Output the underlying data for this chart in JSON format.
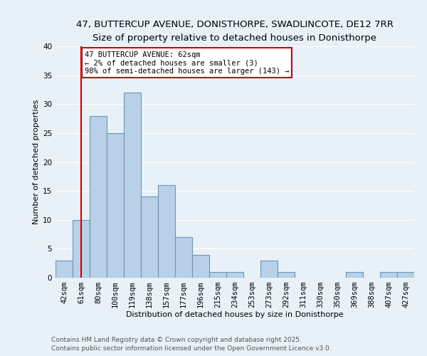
{
  "title1": "47, BUTTERCUP AVENUE, DONISTHORPE, SWADLINCOTE, DE12 7RR",
  "title2": "Size of property relative to detached houses in Donisthorpe",
  "xlabel": "Distribution of detached houses by size in Donisthorpe",
  "ylabel": "Number of detached properties",
  "bin_labels": [
    "42sqm",
    "61sqm",
    "80sqm",
    "100sqm",
    "119sqm",
    "138sqm",
    "157sqm",
    "177sqm",
    "196sqm",
    "215sqm",
    "234sqm",
    "253sqm",
    "273sqm",
    "292sqm",
    "311sqm",
    "330sqm",
    "350sqm",
    "369sqm",
    "388sqm",
    "407sqm",
    "427sqm"
  ],
  "bar_values": [
    3,
    10,
    28,
    25,
    32,
    14,
    16,
    7,
    4,
    1,
    1,
    0,
    3,
    1,
    0,
    0,
    0,
    1,
    0,
    1,
    1
  ],
  "bar_color": "#b8d0e8",
  "bar_edge_color": "#6699bb",
  "ylim": [
    0,
    40
  ],
  "yticks": [
    0,
    5,
    10,
    15,
    20,
    25,
    30,
    35,
    40
  ],
  "property_line_x": 1.0,
  "property_line_color": "#cc0000",
  "annotation_title": "47 BUTTERCUP AVENUE: 62sqm",
  "annotation_line1": "← 2% of detached houses are smaller (3)",
  "annotation_line2": "98% of semi-detached houses are larger (143) →",
  "annotation_box_color": "#ffffff",
  "annotation_box_edge": "#cc0000",
  "footer1": "Contains HM Land Registry data © Crown copyright and database right 2025.",
  "footer2": "Contains public sector information licensed under the Open Government Licence v3.0.",
  "background_color": "#e8f0f8",
  "grid_color": "#ffffff",
  "title_fontsize": 9.5,
  "subtitle_fontsize": 8.5,
  "axis_label_fontsize": 8,
  "tick_fontsize": 7.5,
  "annot_fontsize": 7.5,
  "footer_fontsize": 6.5
}
